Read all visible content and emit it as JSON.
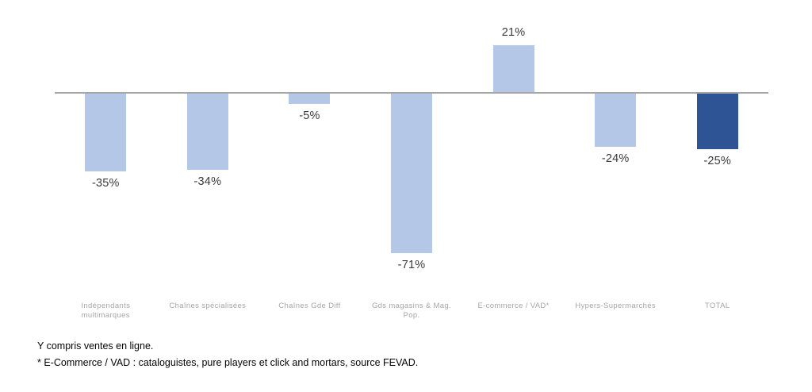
{
  "chart_data": {
    "type": "bar",
    "title": "",
    "xlabel": "",
    "ylabel": "",
    "categories": [
      "Indépendants\nmultimarques",
      "Chaînes spécialisées",
      "Chaînes Gde Diff",
      "Gds magasins & Mag.\nPop.",
      "E-commerce / VAD*",
      "Hypers-Supermarchés",
      "TOTAL"
    ],
    "values": [
      -35,
      -34,
      -5,
      -71,
      21,
      -24,
      -25
    ],
    "data_labels": [
      "-35%",
      "-34%",
      "-5%",
      "-71%",
      "21%",
      "-24%",
      "-25%"
    ],
    "bar_colors": [
      "#b4c7e7",
      "#b4c7e7",
      "#b4c7e7",
      "#b4c7e7",
      "#b4c7e7",
      "#b4c7e7",
      "#2f5496"
    ],
    "accent_light": "#b4c7e7",
    "accent_dark": "#2f5496",
    "axis_color": "#a6a6a6",
    "value_label_color": "#3a3a3a",
    "category_label_color": "#a6a6a6",
    "ylim": [
      -80,
      30
    ],
    "grid": false,
    "legend": false,
    "value_unit": "%"
  },
  "footnotes": {
    "line1": "Y compris ventes en ligne.",
    "line2": "* E-Commerce / VAD : cataloguistes, pure players et click and mortars, source FEVAD."
  }
}
